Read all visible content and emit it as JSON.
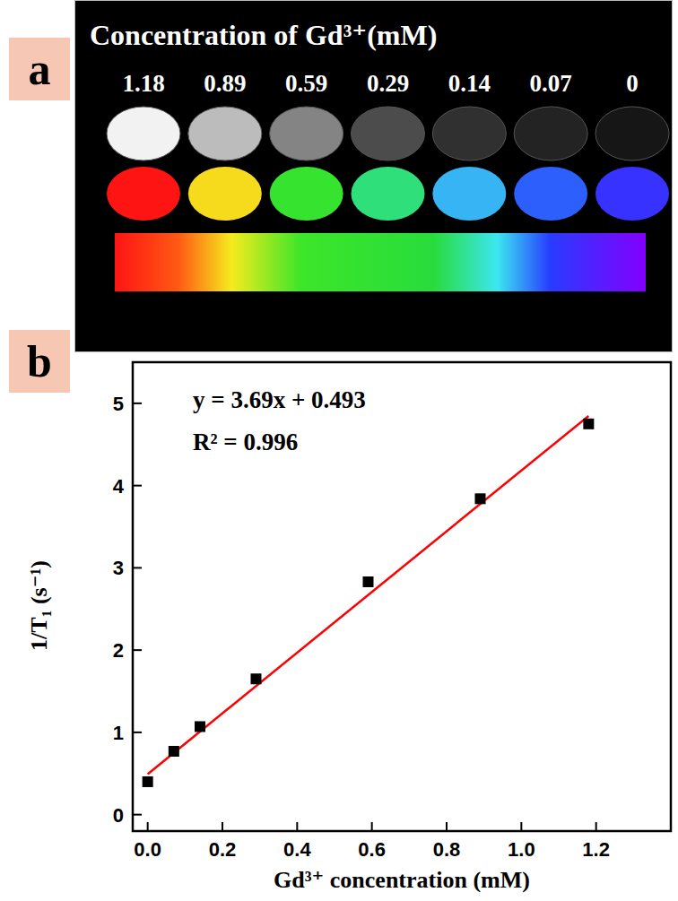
{
  "chart_data": [
    {
      "type": "phantom",
      "panel": "a",
      "title": "Concentration of Gd³⁺(mM)",
      "values": [
        1.18,
        0.89,
        0.59,
        0.29,
        0.14,
        0.07,
        0
      ],
      "data_labels": true
    },
    {
      "type": "scatter",
      "panel": "b",
      "x_label": "Gd³⁺ concentration (mM)",
      "y_label": "1/T₁ (s⁻¹)",
      "annotations": [
        "y = 3.69x + 0.493",
        "R² = 0.996"
      ],
      "xlim": [
        -0.04,
        1.4
      ],
      "xticks": [
        {
          "value": 0,
          "label": "0.0"
        },
        0.2,
        0.4,
        0.6,
        0.8,
        {
          "value": 1,
          "label": "1.0"
        },
        1.2
      ],
      "ylim": [
        -0.2,
        5.5
      ],
      "yticks": [
        0,
        1,
        2,
        3,
        4,
        5
      ],
      "series": [
        {
          "type": "scatter",
          "color": "#000000",
          "marker": "square",
          "x": [
            0,
            0.07,
            0.14,
            0.29,
            0.59,
            0.89,
            1.18
          ],
          "values": [
            0.4,
            0.77,
            1.07,
            1.65,
            2.83,
            3.84,
            4.75
          ]
        },
        {
          "type": "line",
          "color": "#ff0000",
          "line_style": "solid",
          "x": [
            0,
            1.18
          ],
          "values": [
            0.493,
            4.847
          ]
        }
      ]
    }
  ]
}
